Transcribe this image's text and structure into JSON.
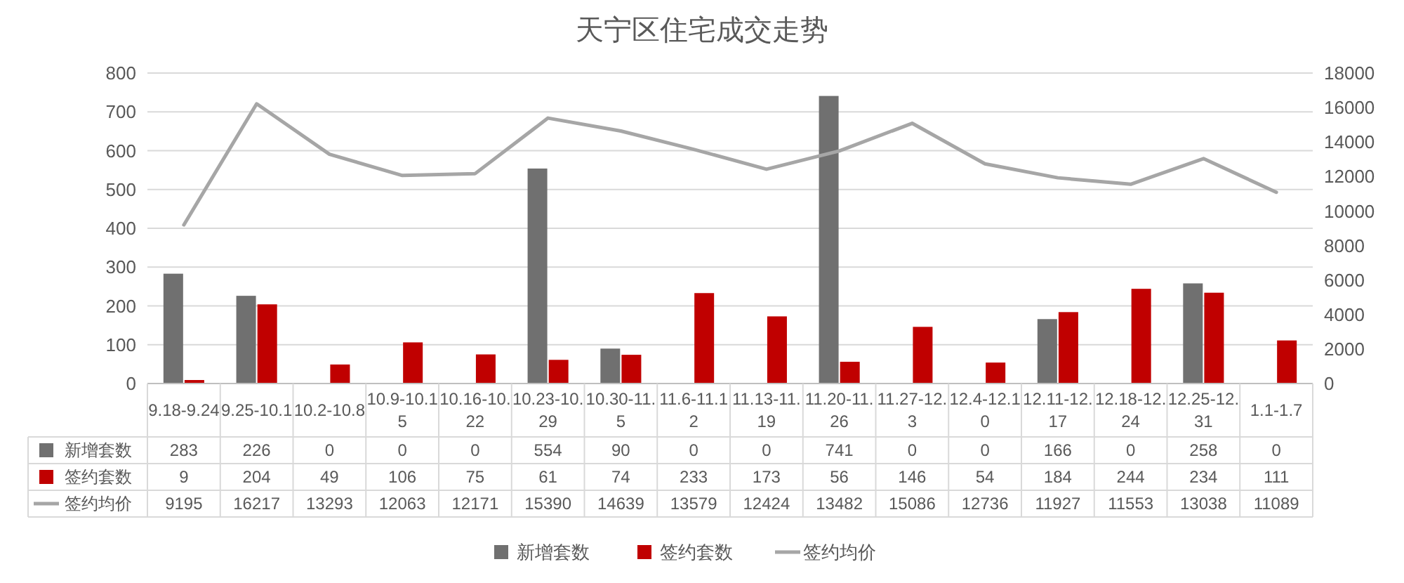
{
  "chart_data": {
    "type": "bar",
    "title": "天宁区住宅成交走势",
    "categories": [
      "9.18-9.24",
      "9.25-10.1",
      "10.2-10.8",
      "10.9-10.15",
      "10.16-10.22",
      "10.23-10.29",
      "10.30-11.5",
      "11.6-11.12",
      "11.13-11.19",
      "11.20-11.26",
      "11.27-12.3",
      "12.4-12.10",
      "12.11-12.17",
      "12.18-12.24",
      "12.25-12.31",
      "1.1-1.7"
    ],
    "series": [
      {
        "name": "新增套数",
        "color": "#707070",
        "values": [
          283,
          226,
          0,
          0,
          0,
          554,
          90,
          0,
          0,
          741,
          0,
          0,
          166,
          0,
          258,
          0
        ]
      },
      {
        "name": "签约套数",
        "color": "#c00000",
        "values": [
          9,
          204,
          49,
          106,
          75,
          61,
          74,
          233,
          173,
          56,
          146,
          54,
          184,
          244,
          234,
          111
        ]
      },
      {
        "name": "签约均价",
        "type": "line",
        "axis": "y2",
        "color": "#a6a6a6",
        "values": [
          9195,
          16217,
          13293,
          12063,
          12171,
          15390,
          14639,
          13579,
          12424,
          13482,
          15086,
          12736,
          11927,
          11553,
          13038,
          11089
        ]
      }
    ],
    "ylim": [
      0,
      800
    ],
    "yticks": [
      0,
      100,
      200,
      300,
      400,
      500,
      600,
      700,
      800
    ],
    "y2lim": [
      0,
      18000
    ],
    "y2ticks": [
      0,
      2000,
      4000,
      6000,
      8000,
      10000,
      12000,
      14000,
      16000,
      18000
    ],
    "grid": "y",
    "legend": "bottom",
    "data_labels": true,
    "marker": "none",
    "line_style": "solid"
  }
}
